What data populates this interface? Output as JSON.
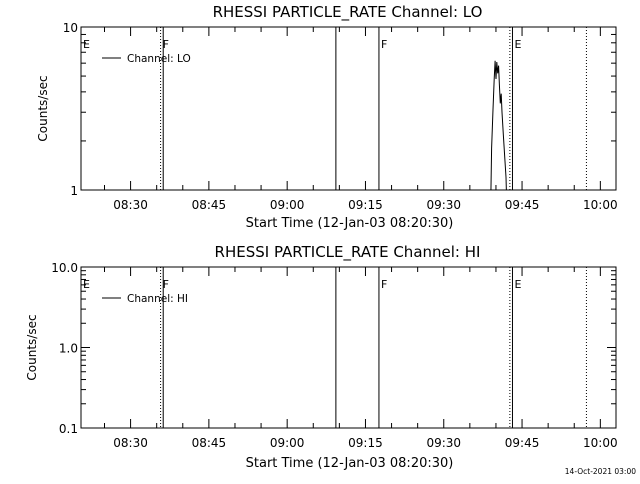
{
  "footer": "14-Oct-2021 03:00",
  "chart_data": [
    {
      "type": "line",
      "title": "RHESSI PARTICLE_RATE Channel: LO",
      "xlabel": "Start Time (12-Jan-03 08:20:30)",
      "ylabel": "Counts/sec",
      "yscale": "log",
      "ylim": [
        1,
        10
      ],
      "xlim": [
        "08:20:30",
        "10:03:00"
      ],
      "x_ticks": [
        "08:30",
        "08:45",
        "09:00",
        "09:15",
        "09:30",
        "09:45",
        "10:00"
      ],
      "y_ticks": [
        "1",
        "10"
      ],
      "legend": {
        "placement": "top-left",
        "entries": [
          "Channel: LO"
        ]
      },
      "markers": [
        {
          "time": "08:20:30",
          "label": "E",
          "style": "solid"
        },
        {
          "time": "08:35:45",
          "label": "F",
          "style": "dotted"
        },
        {
          "time": "08:36:15",
          "label": "",
          "style": "solid"
        },
        {
          "time": "09:09:20",
          "label": "",
          "style": "solid"
        },
        {
          "time": "09:17:35",
          "label": "F",
          "style": "solid"
        },
        {
          "time": "09:42:40",
          "label": "",
          "style": "dotted"
        },
        {
          "time": "09:43:10",
          "label": "E",
          "style": "solid"
        },
        {
          "time": "09:57:20",
          "label": "",
          "style": "dotted"
        }
      ],
      "series": [
        {
          "name": "Channel: LO",
          "points": [
            [
              "09:39:00",
              0.8
            ],
            [
              "09:39:10",
              1.8
            ],
            [
              "09:39:25",
              3.0
            ],
            [
              "09:39:40",
              4.8
            ],
            [
              "09:39:50",
              6.2
            ],
            [
              "09:40:00",
              4.8
            ],
            [
              "09:40:10",
              6.1
            ],
            [
              "09:40:20",
              5.2
            ],
            [
              "09:40:30",
              5.8
            ],
            [
              "09:40:40",
              4.4
            ],
            [
              "09:40:50",
              3.4
            ],
            [
              "09:41:00",
              3.9
            ],
            [
              "09:41:10",
              3.0
            ],
            [
              "09:41:25",
              2.2
            ],
            [
              "09:41:40",
              1.6
            ],
            [
              "09:41:55",
              1.2
            ],
            [
              "09:42:05",
              0.8
            ]
          ]
        }
      ]
    },
    {
      "type": "line",
      "title": "RHESSI PARTICLE_RATE Channel: HI",
      "xlabel": "Start Time (12-Jan-03 08:20:30)",
      "ylabel": "Counts/sec",
      "yscale": "log",
      "ylim": [
        0.1,
        10
      ],
      "xlim": [
        "08:20:30",
        "10:03:00"
      ],
      "x_ticks": [
        "08:30",
        "08:45",
        "09:00",
        "09:15",
        "09:30",
        "09:45",
        "10:00"
      ],
      "y_ticks": [
        "0.1",
        "1.0",
        "10.0"
      ],
      "legend": {
        "placement": "top-left",
        "entries": [
          "Channel: HI"
        ]
      },
      "markers": [
        {
          "time": "08:20:30",
          "label": "E",
          "style": "solid"
        },
        {
          "time": "08:35:45",
          "label": "F",
          "style": "dotted"
        },
        {
          "time": "08:36:15",
          "label": "",
          "style": "solid"
        },
        {
          "time": "09:09:20",
          "label": "",
          "style": "solid"
        },
        {
          "time": "09:17:35",
          "label": "F",
          "style": "solid"
        },
        {
          "time": "09:42:40",
          "label": "",
          "style": "dotted"
        },
        {
          "time": "09:43:10",
          "label": "E",
          "style": "solid"
        },
        {
          "time": "09:57:20",
          "label": "",
          "style": "dotted"
        }
      ],
      "series": [
        {
          "name": "Channel: HI",
          "points": []
        }
      ]
    }
  ]
}
